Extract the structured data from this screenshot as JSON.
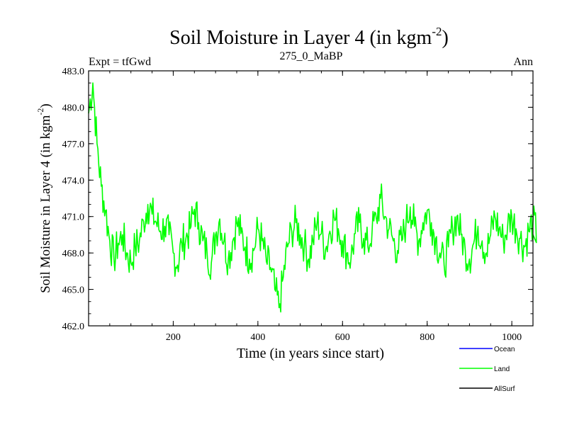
{
  "chart_data": {
    "type": "line",
    "title": "Soil Moisture in Layer 4 (in kgm",
    "title_sup": "-2",
    "title_close": ")",
    "subtitle_left": "Expt = tfGwd",
    "subtitle_center": "275_0_MaBP",
    "subtitle_right": "Ann",
    "xlabel": "Time (in years since start)",
    "ylabel": "Soil Moisture in Layer 4 (in kgm",
    "ylabel_sup": "-2",
    "ylabel_close": ")",
    "xlim": [
      0,
      1050
    ],
    "ylim": [
      462.0,
      483.0
    ],
    "xticks": [
      200,
      400,
      600,
      800,
      1000
    ],
    "xtick_labels": [
      "200",
      "400",
      "600",
      "800",
      "1000"
    ],
    "yticks": [
      462.0,
      465.0,
      468.0,
      471.0,
      474.0,
      477.0,
      480.0,
      483.0
    ],
    "ytick_labels": [
      "462.0",
      "465.0",
      "468.0",
      "471.0",
      "474.0",
      "477.0",
      "480.0",
      "483.0"
    ],
    "legend": [
      {
        "name": "Ocean",
        "color": "#0000ff"
      },
      {
        "name": "Land",
        "color": "#00ff00"
      },
      {
        "name": "AllSurf",
        "color": "#000000"
      }
    ],
    "series": [
      {
        "name": "Land",
        "color": "#00ff00",
        "x_start": 0,
        "x_step": 10,
        "values": [
          479.5,
          482.0,
          477.0,
          473.5,
          471.5,
          469.0,
          467.5,
          468.8,
          469.5,
          468.0,
          467.2,
          468.5,
          469.0,
          470.6,
          472.0,
          471.2,
          470.5,
          469.8,
          470.2,
          469.5,
          468.0,
          467.0,
          468.8,
          469.2,
          470.0,
          471.6,
          470.5,
          469.0,
          468.0,
          467.2,
          469.5,
          470.8,
          469.0,
          467.5,
          468.9,
          470.5,
          469.6,
          468.5,
          467.5,
          468.2,
          470.0,
          469.0,
          467.3,
          466.8,
          465.0,
          463.5,
          466.0,
          468.5,
          469.8,
          470.5,
          469.5,
          468.7,
          467.5,
          469.0,
          470.5,
          469.6,
          468.3,
          469.8,
          471.0,
          470.0,
          469.0,
          468.0,
          467.5,
          469.6,
          470.5,
          469.2,
          468.5,
          469.9,
          470.8,
          472.5,
          471.0,
          470.0,
          469.0,
          468.2,
          469.0,
          470.5,
          471.8,
          470.2,
          469.0,
          470.5,
          471.5,
          470.5,
          469.2,
          468.0,
          467.0,
          468.5,
          470.0,
          471.0,
          469.5,
          468.2,
          467.5,
          468.8,
          470.2,
          469.0,
          468.0,
          469.5,
          471.0,
          470.0,
          469.0,
          470.2,
          471.0,
          470.0,
          469.2,
          468.5,
          469.8,
          470.6,
          469.5
        ]
      }
    ]
  }
}
